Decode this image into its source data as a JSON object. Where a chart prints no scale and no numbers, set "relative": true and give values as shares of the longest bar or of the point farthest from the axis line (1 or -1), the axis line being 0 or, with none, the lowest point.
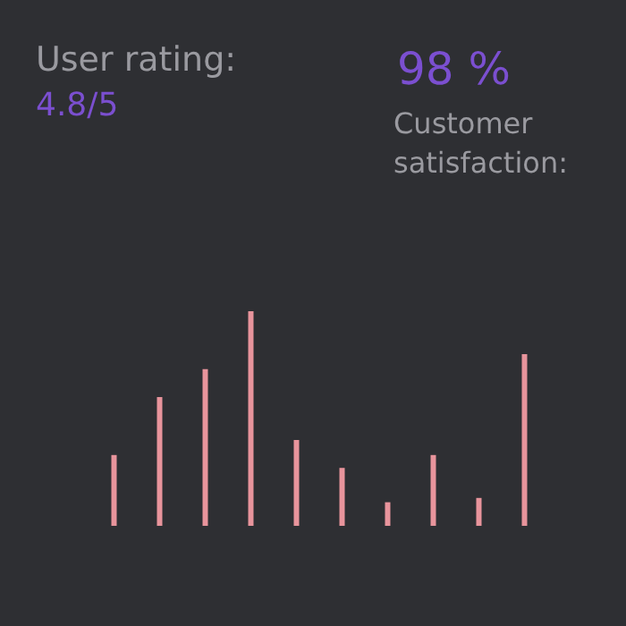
{
  "chart_data": {
    "type": "bar",
    "relative": true,
    "color": "#e8949c",
    "categories": [
      null,
      null,
      null,
      null,
      null,
      null,
      null,
      null,
      null,
      null
    ],
    "values": [
      0.33,
      0.6,
      0.73,
      1,
      0.4,
      0.27,
      0.11,
      0.33,
      0.13,
      0.8
    ],
    "annotations": [
      "User rating:",
      "4.8/5",
      "98 %",
      "Customer satisfaction:"
    ]
  }
}
